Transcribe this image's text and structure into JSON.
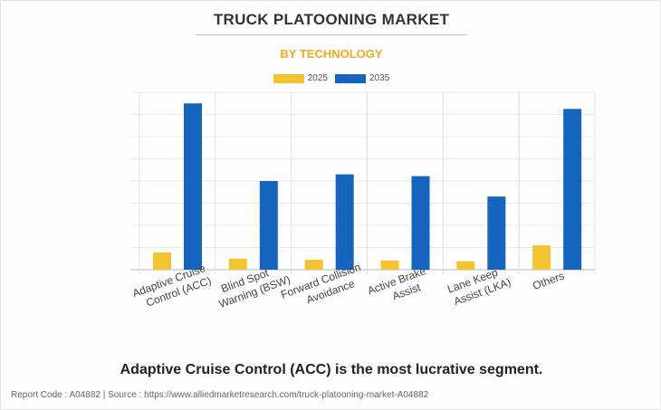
{
  "header": {
    "title": "TRUCK PLATOONING MARKET",
    "subtitle": "BY TECHNOLOGY"
  },
  "chart_data": {
    "type": "bar",
    "title": "TRUCK PLATOONING MARKET",
    "subtitle": "BY TECHNOLOGY",
    "categories": [
      [
        "Adaptive Cruise",
        "Control (ACC)"
      ],
      [
        "Blind Spot",
        "Warning (BSW)"
      ],
      [
        "Forward Collision",
        "Avoidance"
      ],
      [
        "Active Brake",
        "Assist"
      ],
      [
        "Lane Keep",
        "Assist (LKA)"
      ],
      [
        "Others"
      ]
    ],
    "series": [
      {
        "name": "2025",
        "color": "#f4c430",
        "values": [
          0.78,
          0.5,
          0.45,
          0.42,
          0.38,
          1.1
        ]
      },
      {
        "name": "2035",
        "color": "#1565c0",
        "values": [
          7.5,
          4.0,
          4.3,
          4.22,
          3.3,
          7.25
        ]
      }
    ],
    "ylim": [
      0,
      8
    ],
    "grid": true,
    "legend": "top-center",
    "xlabel": "",
    "ylabel": ""
  },
  "note": "Adaptive Cruise Control (ACC) is the most lucrative segment.",
  "footer": "Report Code : A04882  |  Source : https://www.alliedmarketresearch.com/truck-platooning-market-A04882"
}
